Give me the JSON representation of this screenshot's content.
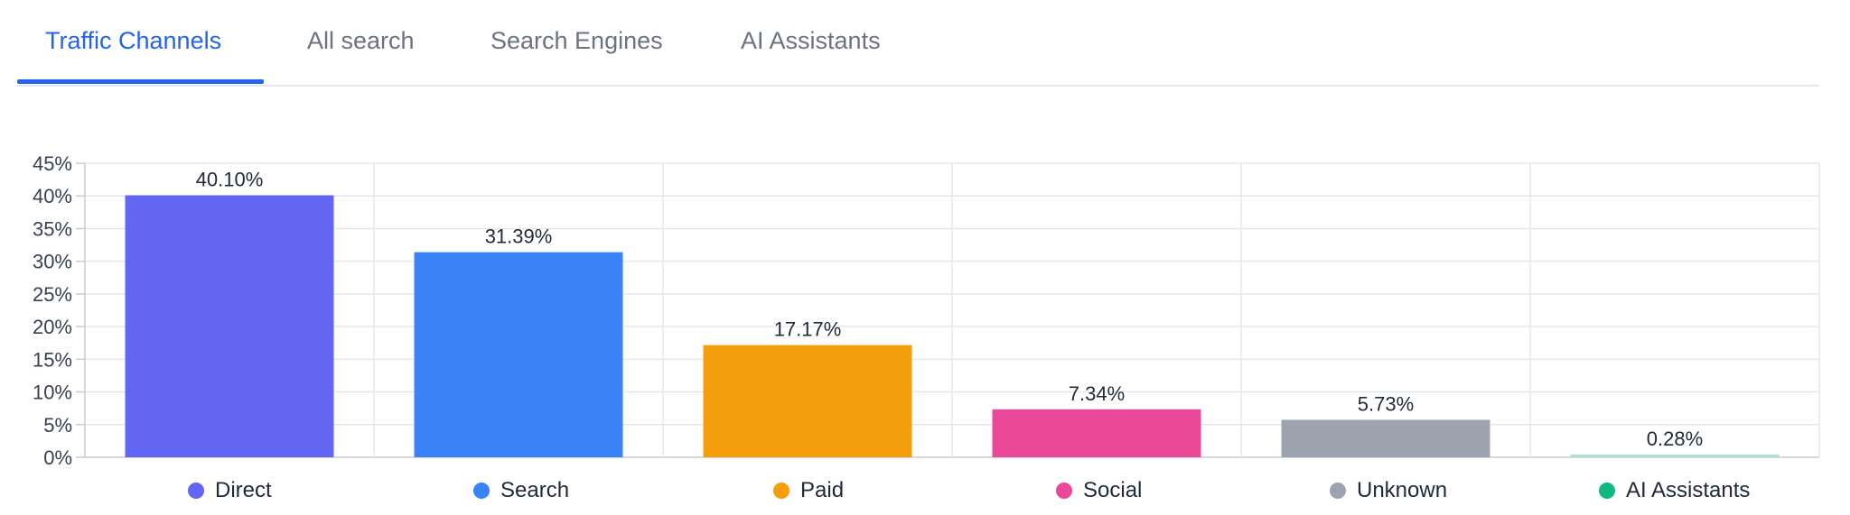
{
  "tabs": [
    {
      "label": "Traffic Channels",
      "active": true
    },
    {
      "label": "All search",
      "active": false
    },
    {
      "label": "Search Engines",
      "active": false
    },
    {
      "label": "AI Assistants",
      "active": false
    }
  ],
  "colors": {
    "accent": "#2563eb",
    "direct": "#6366f1",
    "search": "#3b82f6",
    "paid": "#f59e0b",
    "social": "#ec4899",
    "unknown": "#9ca3af",
    "ai_assistants": "#10b981",
    "ai_assistants_bar": "#a7e3cd"
  },
  "chart_data": {
    "type": "bar",
    "categories": [
      "Direct",
      "Search",
      "Paid",
      "Social",
      "Unknown",
      "AI Assistants"
    ],
    "values": [
      40.1,
      31.39,
      17.17,
      7.34,
      5.73,
      0.28
    ],
    "value_labels": [
      "40.10%",
      "31.39%",
      "17.17%",
      "7.34%",
      "5.73%",
      "0.28%"
    ],
    "y_ticks": [
      "0%",
      "5%",
      "10%",
      "15%",
      "20%",
      "25%",
      "30%",
      "35%",
      "40%",
      "45%"
    ],
    "ylim": [
      0,
      45
    ],
    "grid": true,
    "legend": "bottom"
  }
}
